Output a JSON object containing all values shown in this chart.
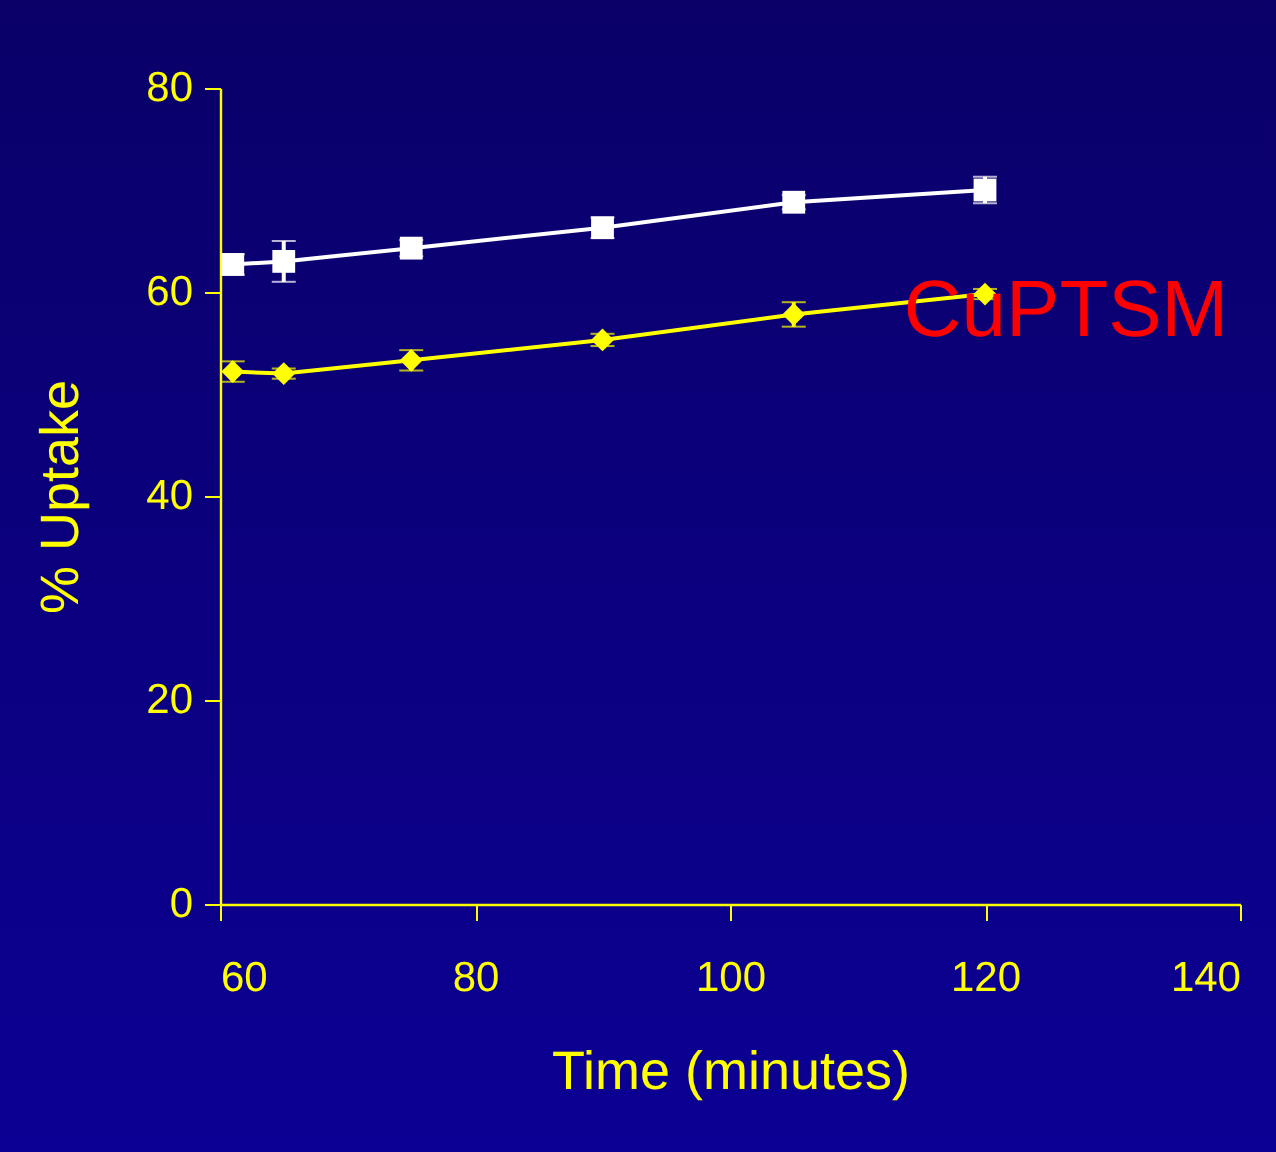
{
  "chart_data": {
    "type": "line",
    "xlabel": "Time (minutes)",
    "ylabel": "% Uptake",
    "xlim": [
      60,
      140
    ],
    "xticks": [
      60,
      80,
      100,
      120,
      140
    ],
    "ylim": [
      0,
      80
    ],
    "yticks": [
      0,
      20,
      40,
      60,
      80
    ],
    "grid": false,
    "annotations": [
      "CuPTSM"
    ],
    "series": [
      {
        "color": "#ffffff",
        "marker": "square",
        "x": [
          61,
          65,
          75,
          90,
          105,
          120
        ],
        "values": [
          62.7,
          63,
          64.3,
          66.3,
          68.8,
          70
        ],
        "errors": [
          1,
          2,
          0.8,
          1,
          0.7,
          1.3
        ]
      },
      {
        "color": "#ffff00",
        "marker": "diamond",
        "x": [
          61,
          65,
          75,
          90,
          105,
          120
        ],
        "values": [
          52.2,
          52,
          53.3,
          55.3,
          57.8,
          59.8
        ],
        "errors": [
          1,
          0.5,
          1,
          0.6,
          1.2,
          0.5
        ]
      }
    ]
  }
}
